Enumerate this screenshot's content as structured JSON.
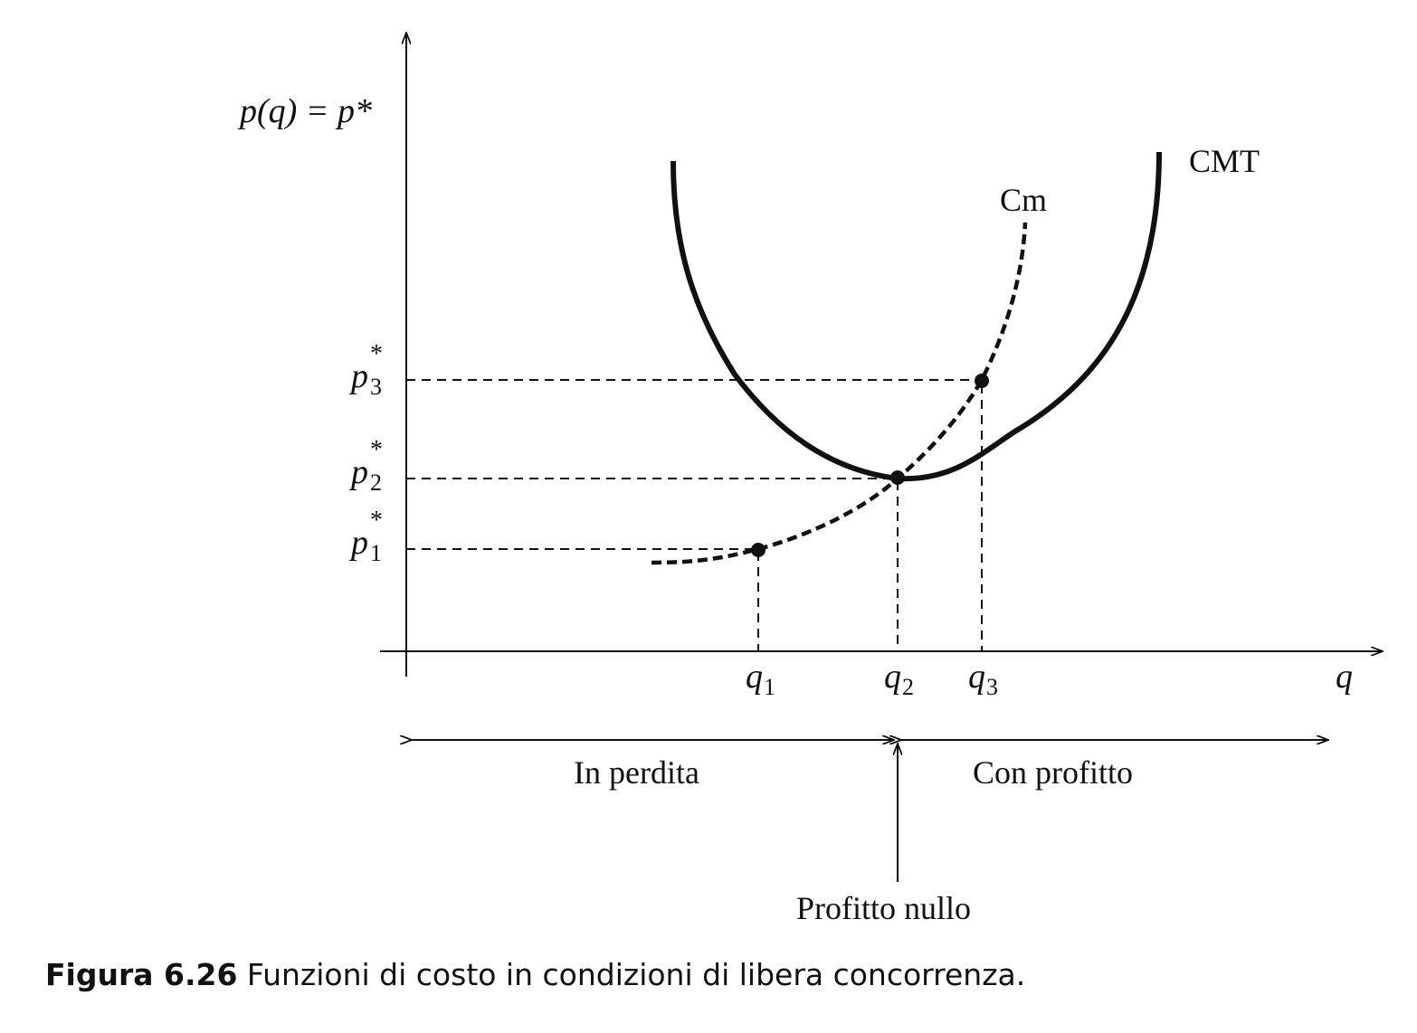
{
  "figure": {
    "y_axis_label": "p(q) = p*",
    "x_axis_label": "q",
    "price_labels": [
      {
        "base": "p",
        "sup": "*",
        "sub": "3"
      },
      {
        "base": "p",
        "sup": "*",
        "sub": "2"
      },
      {
        "base": "p",
        "sup": "*",
        "sub": "1"
      }
    ],
    "quantity_labels": [
      {
        "base": "q",
        "sub": "1"
      },
      {
        "base": "q",
        "sub": "2"
      },
      {
        "base": "q",
        "sub": "3"
      }
    ],
    "curves": {
      "total_average_cost": "CMT",
      "marginal_cost": "Cm"
    },
    "regions": {
      "loss": "In perdita",
      "profit": "Con profitto",
      "zero_profit": "Profitto nullo"
    }
  },
  "caption": {
    "number": "Figura 6.26",
    "text": "Funzioni di costo in condizioni di libera concorrenza."
  }
}
